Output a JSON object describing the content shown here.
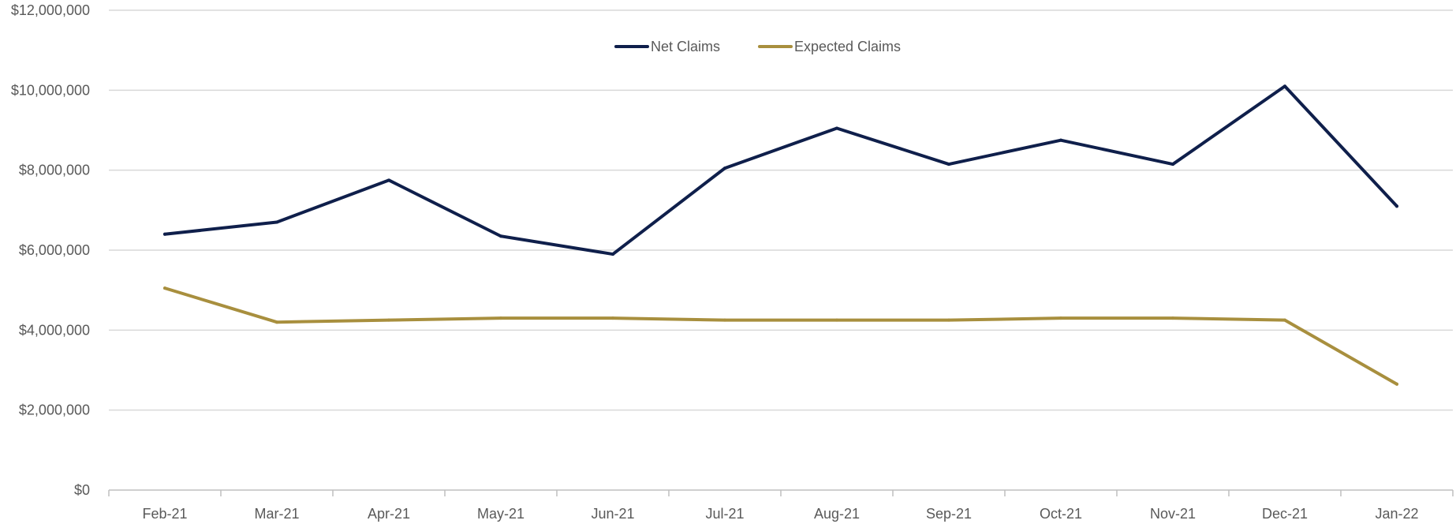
{
  "chart_data": {
    "type": "line",
    "title": "",
    "xlabel": "",
    "ylabel": "",
    "categories": [
      "Feb-21",
      "Mar-21",
      "Apr-21",
      "May-21",
      "Jun-21",
      "Jul-21",
      "Aug-21",
      "Sep-21",
      "Oct-21",
      "Nov-21",
      "Dec-21",
      "Jan-22"
    ],
    "ylim": [
      0,
      12000000
    ],
    "yticks": [
      0,
      2000000,
      4000000,
      6000000,
      8000000,
      10000000,
      12000000
    ],
    "ytick_labels": [
      "$0",
      "$2,000,000",
      "$4,000,000",
      "$6,000,000",
      "$8,000,000",
      "$10,000,000",
      "$12,000,000"
    ],
    "grid": true,
    "legend_position": "top-center",
    "series": [
      {
        "name": "Net Claims",
        "color": "#0f1f4b",
        "values": [
          6400000,
          6700000,
          7750000,
          6350000,
          5900000,
          8050000,
          9050000,
          8150000,
          8750000,
          8150000,
          10100000,
          7100000
        ]
      },
      {
        "name": "Expected Claims",
        "color": "#a88f3e",
        "values": [
          5050000,
          4200000,
          4250000,
          4300000,
          4300000,
          4250000,
          4250000,
          4250000,
          4300000,
          4300000,
          4250000,
          2650000
        ]
      }
    ]
  },
  "colors": {
    "grid": "#d9d9d9",
    "axis": "#bfbfbf",
    "text": "#595959"
  }
}
